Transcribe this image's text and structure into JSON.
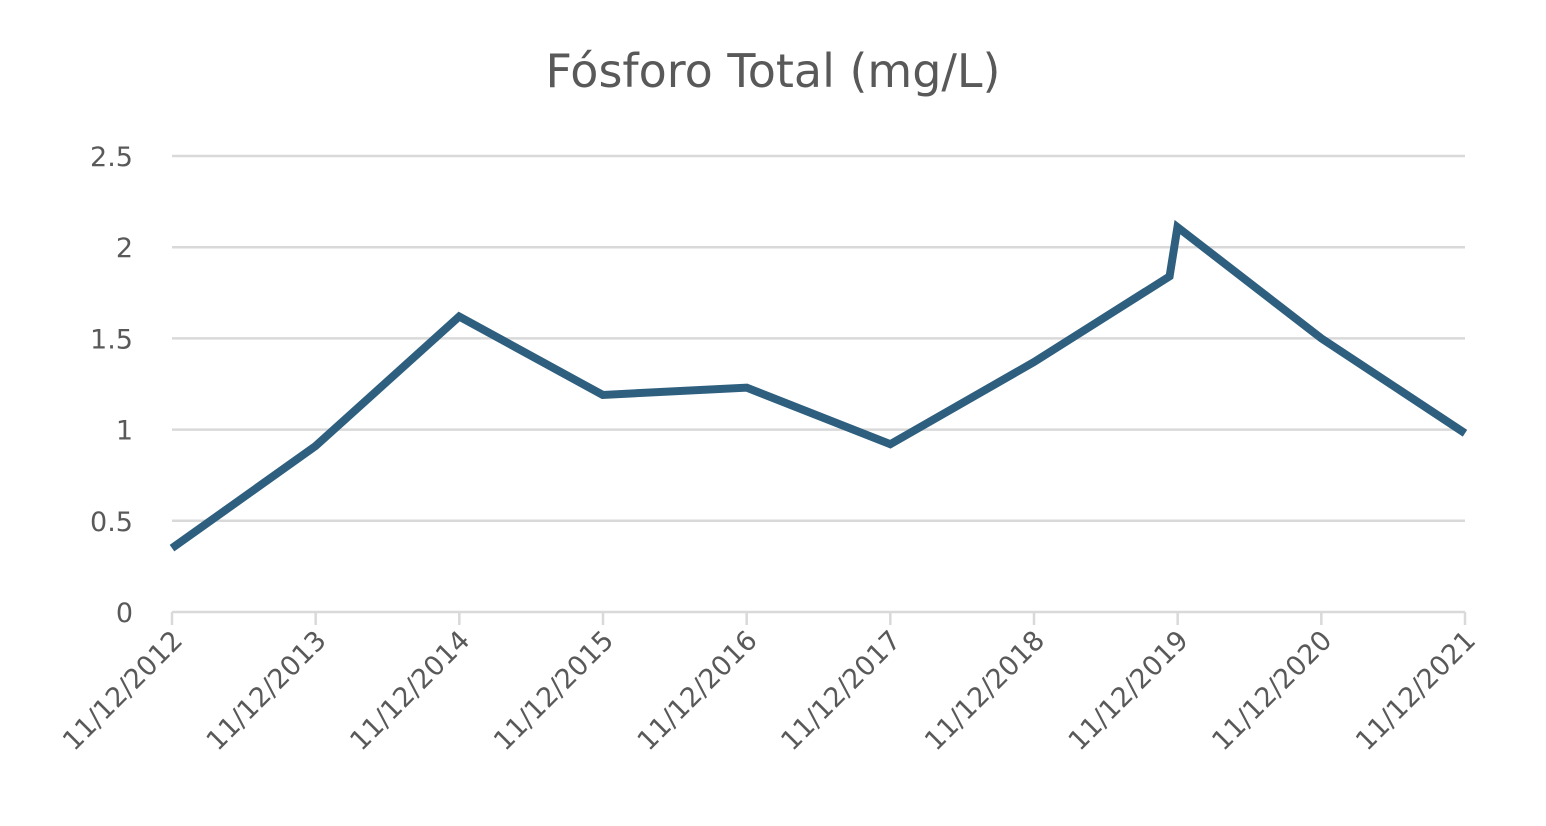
{
  "chart_data": {
    "type": "line",
    "title": "Fósforo Total (mg/L)",
    "xlabel": "",
    "ylabel": "",
    "x_tick_labels": [
      "11/12/2012",
      "11/12/2013",
      "11/12/2014",
      "11/12/2015",
      "11/12/2016",
      "11/12/2017",
      "11/12/2018",
      "11/12/2019",
      "11/12/2020",
      "11/12/2021"
    ],
    "x_range": [
      "2012-12-11",
      "2021-12-11"
    ],
    "y_tick_labels": [
      "0",
      "0.5",
      "1",
      "1.5",
      "2",
      "2.5"
    ],
    "y_ticks": [
      0,
      0.5,
      1,
      1.5,
      2,
      2.5
    ],
    "ylim": [
      0,
      2.5
    ],
    "grid": true,
    "legend": "none",
    "series": [
      {
        "color": "#2e5f7f",
        "points": [
          {
            "x": "2012-12-11",
            "y": 0.35
          },
          {
            "x": "2013-12-11",
            "y": 0.91
          },
          {
            "x": "2014-12-11",
            "y": 1.62
          },
          {
            "x": "2015-12-11",
            "y": 1.19
          },
          {
            "x": "2016-12-11",
            "y": 1.23
          },
          {
            "x": "2017-12-11",
            "y": 0.92
          },
          {
            "x": "2018-12-11",
            "y": 1.37
          },
          {
            "x": "2019-11-21",
            "y": 1.84
          },
          {
            "x": "2019-12-11",
            "y": 2.11
          },
          {
            "x": "2020-12-11",
            "y": 1.5
          },
          {
            "x": "2021-12-11",
            "y": 0.98
          }
        ]
      }
    ]
  }
}
